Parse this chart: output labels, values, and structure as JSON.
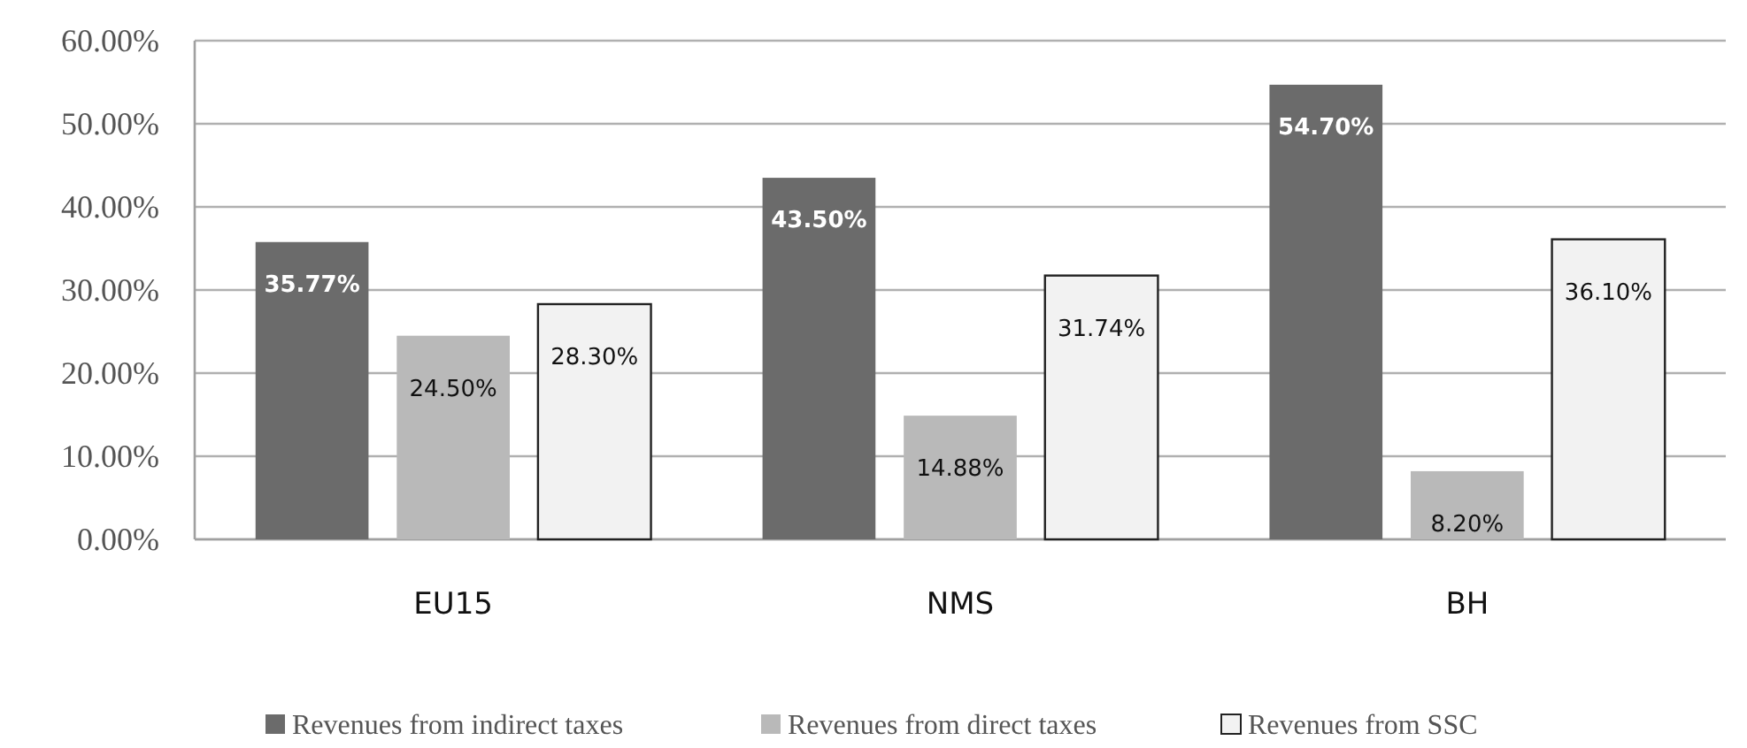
{
  "chart_data": {
    "type": "bar",
    "categories": [
      "EU15",
      "NMS",
      "BH"
    ],
    "series": [
      {
        "name": "Revenues from indirect taxes",
        "color": "#6b6b6b",
        "values": [
          35.77,
          43.5,
          54.7
        ],
        "value_labels": [
          "35.77%",
          "43.50%",
          "54.70%"
        ]
      },
      {
        "name": "Revenues from direct taxes",
        "color": "#b9b9b9",
        "values": [
          24.5,
          14.88,
          8.2
        ],
        "value_labels": [
          "24.50%",
          "14.88%",
          "8.20%"
        ]
      },
      {
        "name": "Revenues from SSC",
        "color": "#f2f2f2",
        "values": [
          28.3,
          31.74,
          36.1
        ],
        "value_labels": [
          "28.30%",
          "31.74%",
          "36.10%"
        ]
      }
    ],
    "ylim": [
      0,
      60
    ],
    "yticks": [
      {
        "value": 0,
        "label": "0.00%"
      },
      {
        "value": 10,
        "label": "10.00%"
      },
      {
        "value": 20,
        "label": "20.00%"
      },
      {
        "value": 30,
        "label": "30.00%"
      },
      {
        "value": 40,
        "label": "40.00%"
      },
      {
        "value": 50,
        "label": "50.00%"
      },
      {
        "value": 60,
        "label": "60.00%"
      }
    ],
    "grid": "y",
    "legend": "bottom"
  }
}
